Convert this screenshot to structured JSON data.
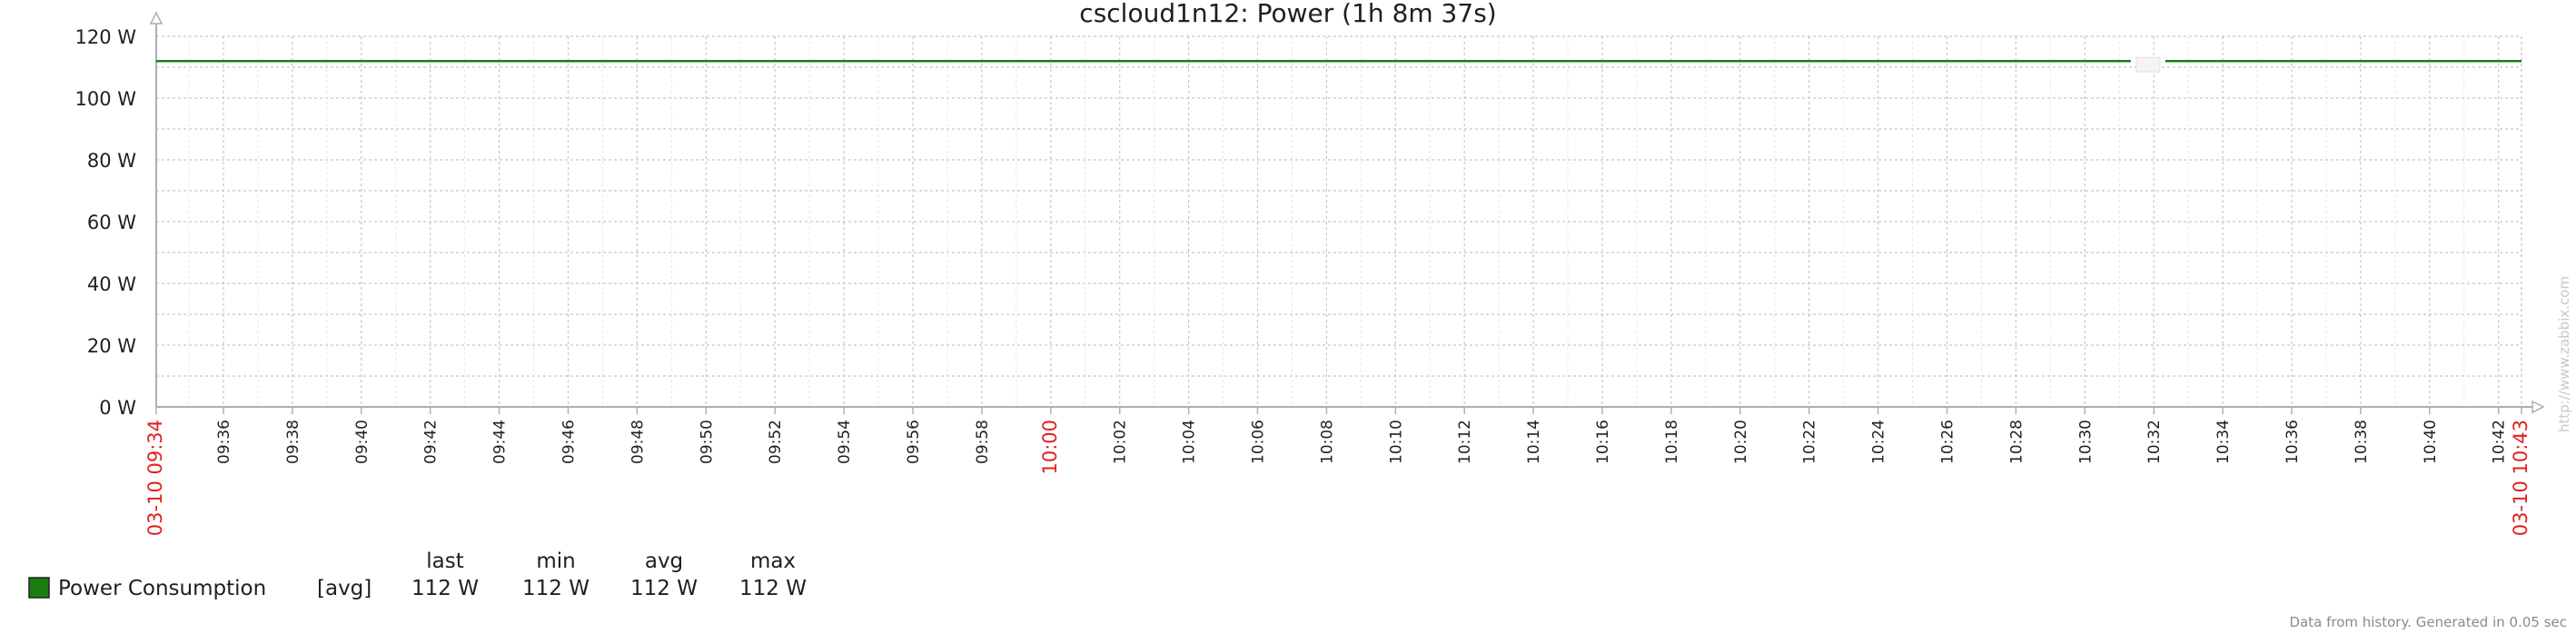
{
  "chart_data": {
    "type": "line",
    "title": "cscloud1n12: Power (1h 8m 37s)",
    "x_start_label": "03-10 09:34",
    "x_end_label": "03-10 10:43",
    "x_tick_labels": [
      "09:36",
      "09:38",
      "09:40",
      "09:42",
      "09:44",
      "09:46",
      "09:48",
      "09:50",
      "09:52",
      "09:54",
      "09:56",
      "09:58",
      "10:00",
      "10:02",
      "10:04",
      "10:06",
      "10:08",
      "10:10",
      "10:12",
      "10:14",
      "10:16",
      "10:18",
      "10:20",
      "10:22",
      "10:24",
      "10:26",
      "10:28",
      "10:30",
      "10:32",
      "10:34",
      "10:36",
      "10:38",
      "10:40",
      "10:42"
    ],
    "highlight_labels": [
      "03-10 09:34",
      "10:00",
      "03-10 10:43"
    ],
    "y_tick_labels": [
      "0 W",
      "20 W",
      "40 W",
      "60 W",
      "80 W",
      "100 W",
      "120 W"
    ],
    "ylim": [
      0,
      120
    ],
    "xlim": [
      "09:34:03",
      "10:42:40"
    ],
    "grid": true,
    "series": [
      {
        "name": "Power Consumption",
        "color": "#1a7c11",
        "segments": [
          {
            "x": [
              "09:34:03",
              "10:31:20"
            ],
            "y": [
              112,
              112
            ]
          },
          {
            "x": [
              "10:32:20",
              "10:42:40"
            ],
            "y": [
              112,
              112
            ]
          }
        ]
      }
    ],
    "legend": {
      "headers": [
        "last",
        "min",
        "avg",
        "max"
      ],
      "rows": [
        {
          "name": "Power Consumption",
          "func": "[avg]",
          "last": "112 W",
          "min": "112 W",
          "avg": "112 W",
          "max": "112 W",
          "color": "#1a7c11"
        }
      ]
    },
    "watermark": "http://www.zabbix.com",
    "footer": "Data from history. Generated in 0.05 sec"
  }
}
